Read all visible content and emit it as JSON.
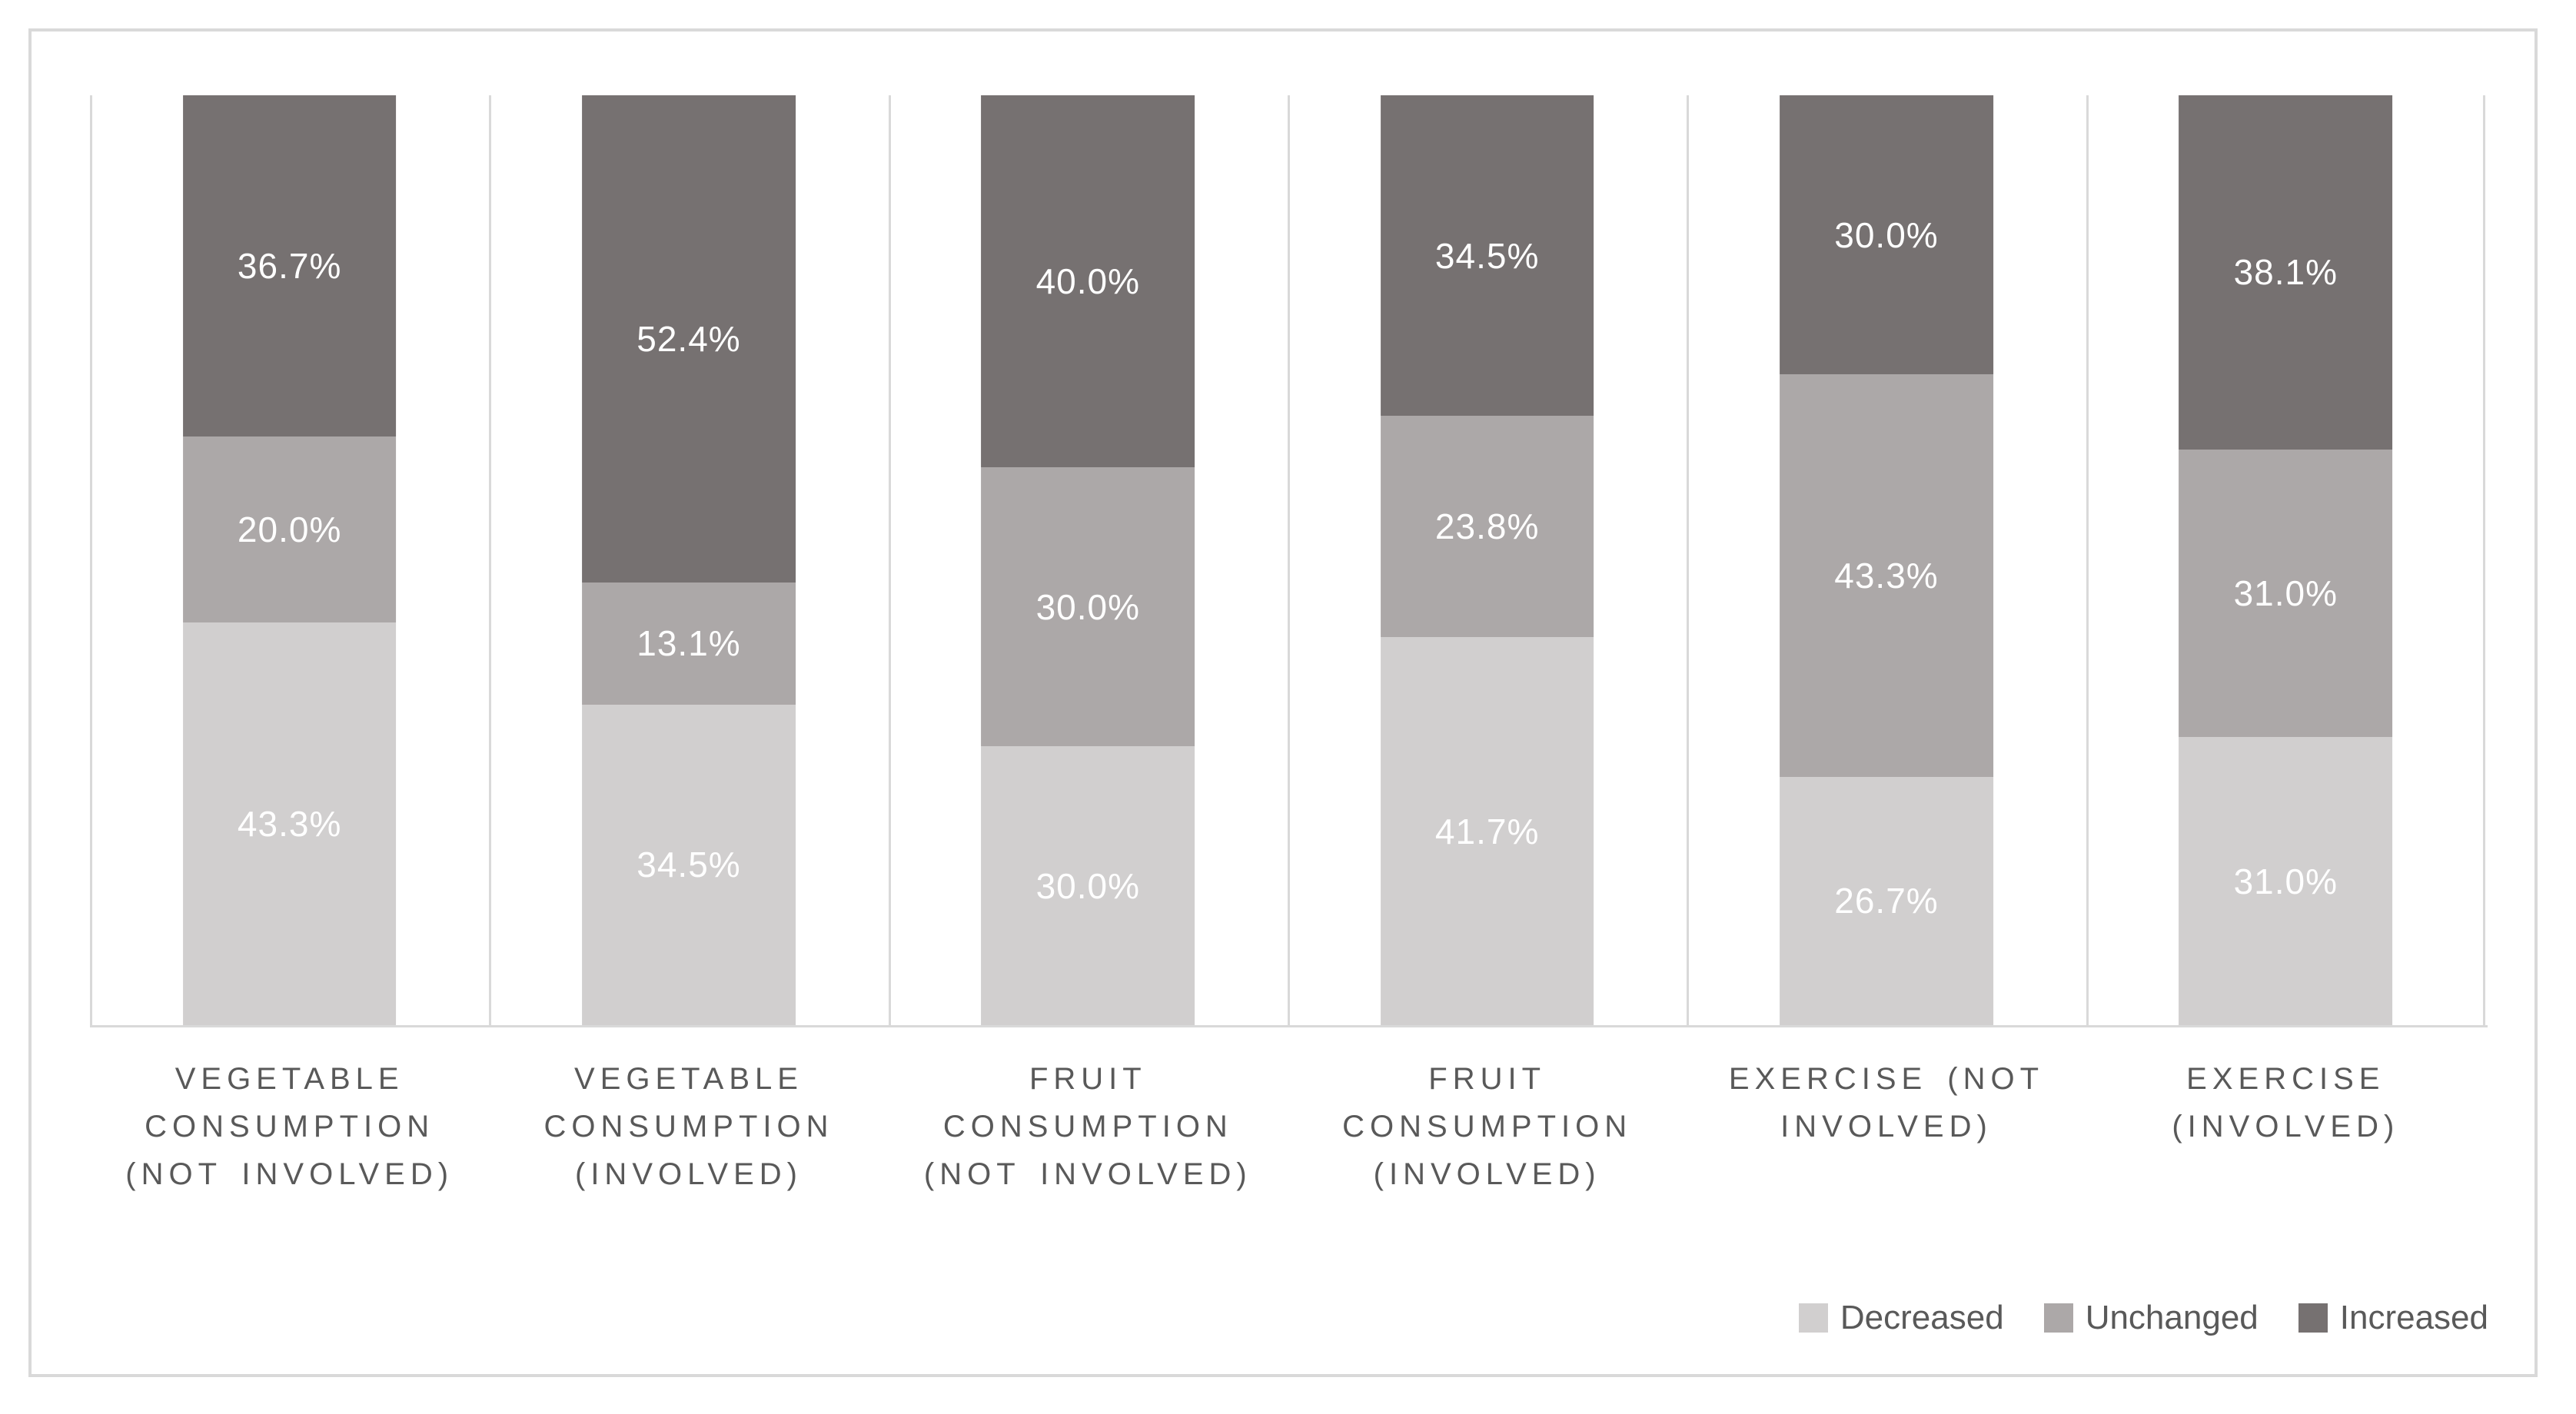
{
  "figure": {
    "background": "#ffffff",
    "frame_color": "#d9d9d9",
    "gridline_color": "#d9d9d9",
    "axis_color": "#d9d9d9",
    "category_label_color": "#595959",
    "data_label_color": "#ffffff"
  },
  "chart_data": {
    "type": "bar",
    "subtype": "100-percent-stacked-column",
    "title": "",
    "xlabel": "",
    "ylabel": "",
    "ylim": [
      0,
      100
    ],
    "grid": "vertical category separator lines only",
    "legend_position": "bottom-right",
    "categories": [
      "VEGETABLE CONSUMPTION (NOT INVOLVED)",
      "VEGETABLE CONSUMPTION (INVOLVED)",
      "FRUIT CONSUMPTION (NOT INVOLVED)",
      "FRUIT CONSUMPTION (INVOLVED)",
      "EXERCISE (NOT INVOLVED)",
      "EXERCISE (INVOLVED)"
    ],
    "category_label_lines": [
      [
        "VEGETABLE",
        "CONSUMPTION",
        "(NOT INVOLVED)"
      ],
      [
        "VEGETABLE",
        "CONSUMPTION",
        "(INVOLVED)"
      ],
      [
        "FRUIT",
        "CONSUMPTION",
        "(NOT INVOLVED)"
      ],
      [
        "FRUIT",
        "CONSUMPTION",
        "(INVOLVED)"
      ],
      [
        "EXERCISE (NOT",
        "INVOLVED)"
      ],
      [
        "EXERCISE",
        "(INVOLVED)"
      ]
    ],
    "series": [
      {
        "name": "Decreased",
        "color": "#d1cfcf",
        "values": [
          43.3,
          34.5,
          30.0,
          41.7,
          26.7,
          31.0
        ],
        "labels": [
          "43.3%",
          "34.5%",
          "30.0%",
          "41.7%",
          "26.7%",
          "31.0%"
        ]
      },
      {
        "name": "Unchanged",
        "color": "#aca8a8",
        "values": [
          20.0,
          13.1,
          30.0,
          23.8,
          43.3,
          31.0
        ],
        "labels": [
          "20.0%",
          "13.1%",
          "30.0%",
          "23.8%",
          "43.3%",
          "31.0%"
        ]
      },
      {
        "name": "Increased",
        "color": "#767171",
        "values": [
          36.7,
          52.4,
          40.0,
          34.5,
          30.0,
          38.1
        ],
        "labels": [
          "36.7%",
          "52.4%",
          "40.0%",
          "34.5%",
          "30.0%",
          "38.1%"
        ]
      }
    ]
  }
}
